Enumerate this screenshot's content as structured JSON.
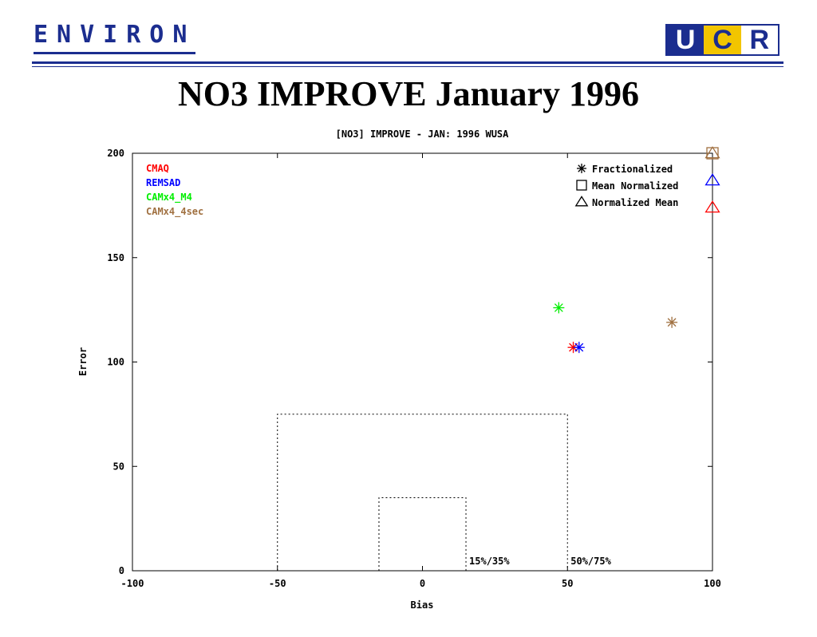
{
  "header": {
    "left_logo": "ENVIRON",
    "right_logo": [
      "U",
      "C",
      "R"
    ]
  },
  "page_title": "NO3 IMPROVE January 1996",
  "chart_data": {
    "type": "scatter",
    "title": "[NO3] IMPROVE - JAN: 1996 WUSA",
    "xlabel": "Bias",
    "ylabel": "Error",
    "xlim": [
      -100,
      100
    ],
    "ylim": [
      0,
      200
    ],
    "xticks": [
      -100,
      -50,
      0,
      50,
      100
    ],
    "yticks": [
      0,
      50,
      100,
      150,
      200
    ],
    "grid": false,
    "series": [
      {
        "name": "CMAQ",
        "color": "#ff0000",
        "points": [
          {
            "metric": "Fractionalized",
            "x": 52,
            "y": 107
          },
          {
            "metric": "Normalized Mean",
            "x": 100,
            "y": 174
          }
        ]
      },
      {
        "name": "REMSAD",
        "color": "#0000ff",
        "points": [
          {
            "metric": "Fractionalized",
            "x": 54,
            "y": 107
          },
          {
            "metric": "Normalized Mean",
            "x": 100,
            "y": 187
          }
        ]
      },
      {
        "name": "CAMx4_M4",
        "color": "#00ee00",
        "points": [
          {
            "metric": "Fractionalized",
            "x": 47,
            "y": 126
          }
        ]
      },
      {
        "name": "CAMx4_4sec",
        "color": "#a07040",
        "points": [
          {
            "metric": "Fractionalized",
            "x": 86,
            "y": 119
          },
          {
            "metric": "Mean Normalized",
            "x": 100,
            "y": 200
          },
          {
            "metric": "Normalized Mean",
            "x": 100,
            "y": 200
          }
        ]
      }
    ],
    "marker_legend": [
      {
        "label": "Fractionalized",
        "symbol": "asterisk"
      },
      {
        "label": "Mean Normalized",
        "symbol": "square"
      },
      {
        "label": "Normalized Mean",
        "symbol": "triangle"
      }
    ],
    "goal_boxes": [
      {
        "label": "15%/35%",
        "bias": 15,
        "error": 35
      },
      {
        "label": "50%/75%",
        "bias": 50,
        "error": 75
      }
    ]
  }
}
